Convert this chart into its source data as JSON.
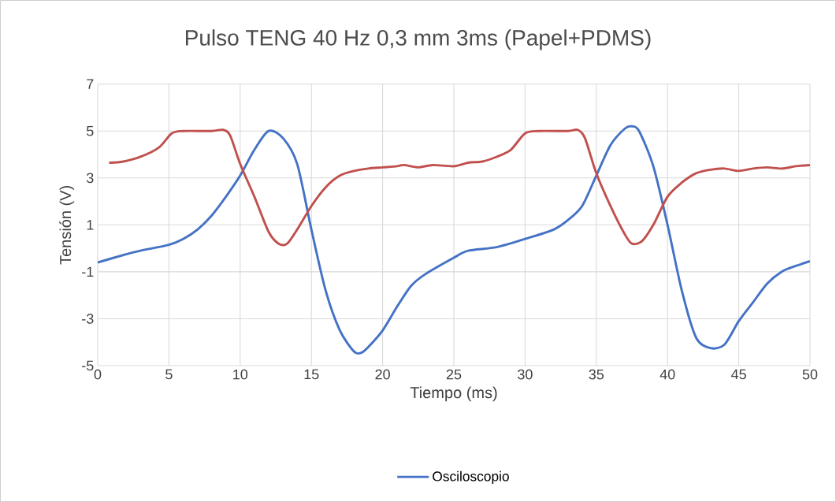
{
  "chart_data": {
    "type": "line",
    "title": "Pulso TENG 40 Hz 0,3 mm 3ms (Papel+PDMS)",
    "xlabel": "Tiempo (ms)",
    "ylabel": "Tensión (V)",
    "xlim": [
      0,
      50
    ],
    "xticks": [
      0,
      5,
      10,
      15,
      20,
      25,
      30,
      35,
      40,
      45,
      50
    ],
    "ylim": [
      -5,
      7
    ],
    "yticks": [
      -5,
      -3,
      -1,
      1,
      3,
      5,
      7
    ],
    "grid": true,
    "legend": "bottom",
    "marker": "none",
    "line_style": "solid",
    "series": [
      {
        "name": "Osciloscopio",
        "color": "#4472c4",
        "x": [
          0,
          2,
          3,
          5,
          6,
          7,
          8,
          9,
          10,
          11,
          12,
          13,
          14,
          15,
          16,
          17,
          18,
          18.5,
          19,
          20,
          21,
          22,
          23,
          25,
          26,
          28,
          30,
          32,
          33,
          34,
          35,
          36,
          37,
          37.5,
          38,
          39,
          40,
          41,
          42,
          43,
          44,
          45,
          46,
          47,
          48,
          49,
          50
        ],
        "values": [
          -0.6,
          -0.25,
          -0.1,
          0.15,
          0.4,
          0.8,
          1.4,
          2.2,
          3.1,
          4.2,
          5.0,
          4.7,
          3.6,
          0.8,
          -1.8,
          -3.5,
          -4.4,
          -4.45,
          -4.2,
          -3.5,
          -2.5,
          -1.6,
          -1.1,
          -0.4,
          -0.1,
          0.05,
          0.4,
          0.8,
          1.2,
          1.8,
          3.1,
          4.4,
          5.1,
          5.2,
          5.0,
          3.5,
          1.0,
          -1.8,
          -3.8,
          -4.25,
          -4.1,
          -3.1,
          -2.3,
          -1.5,
          -1.0,
          -0.75,
          -0.55
        ]
      },
      {
        "color": "#c0504d",
        "x": [
          0.8,
          1.8,
          3,
          4.3,
          5.2,
          6,
          8,
          8.8,
          9.3,
          10,
          11,
          12,
          12.7,
          13.3,
          14,
          15,
          16,
          17,
          18,
          19,
          20,
          21,
          21.5,
          22.5,
          23.5,
          25,
          26,
          27,
          28,
          29,
          30,
          31,
          33,
          33.7,
          34.2,
          35,
          36,
          37,
          37.5,
          38.2,
          39,
          40,
          41,
          42,
          43,
          44,
          45,
          46,
          47,
          48,
          49,
          50
        ],
        "values": [
          3.65,
          3.7,
          3.9,
          4.3,
          4.9,
          5.0,
          5.0,
          5.05,
          4.8,
          3.6,
          2.2,
          0.7,
          0.2,
          0.2,
          0.8,
          1.8,
          2.6,
          3.1,
          3.3,
          3.4,
          3.45,
          3.5,
          3.55,
          3.45,
          3.55,
          3.5,
          3.65,
          3.7,
          3.9,
          4.2,
          4.9,
          5.0,
          5.0,
          5.05,
          4.7,
          3.2,
          1.8,
          0.6,
          0.2,
          0.3,
          1.0,
          2.2,
          2.8,
          3.2,
          3.35,
          3.4,
          3.3,
          3.4,
          3.45,
          3.4,
          3.5,
          3.55
        ]
      }
    ]
  }
}
